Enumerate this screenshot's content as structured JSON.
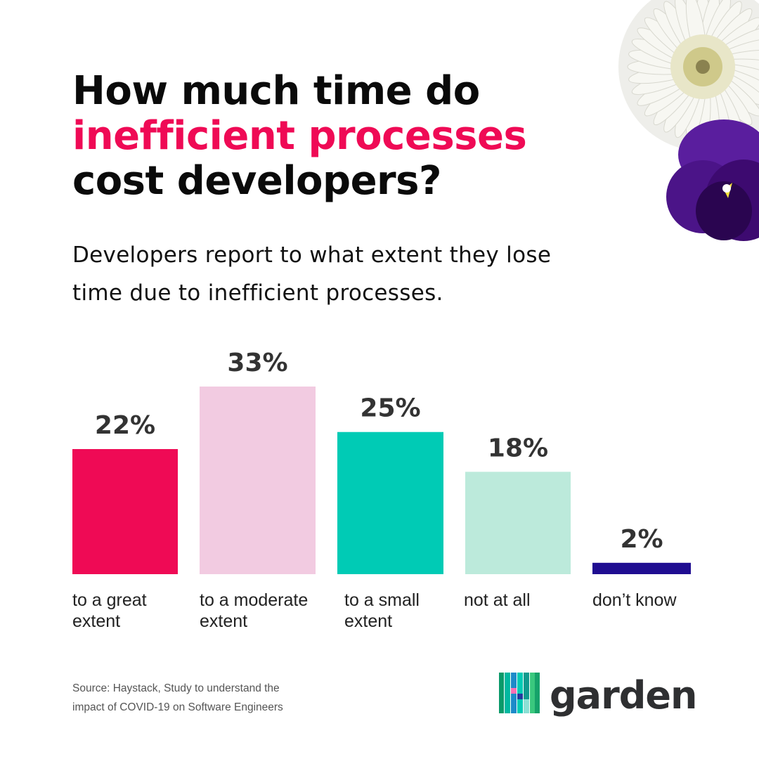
{
  "title": {
    "line1": "How much time do",
    "line2": "inefficient processes",
    "line3": "cost developers?"
  },
  "subtitle": {
    "line1": "Developers report to what extent they lose",
    "line2": "time due to inefficient processes."
  },
  "chart_data": {
    "type": "bar",
    "categories": [
      [
        "to a great",
        "extent"
      ],
      [
        "to a moderate",
        "extent"
      ],
      [
        "to a small",
        "extent"
      ],
      [
        "not at all"
      ],
      [
        "don’t know"
      ]
    ],
    "values": [
      22,
      33,
      25,
      18,
      2
    ],
    "data_labels": [
      "22%",
      "33%",
      "25%",
      "18%",
      "2%"
    ],
    "bar_colors": [
      "#ef0a55",
      "#f2cbe1",
      "#00cbb5",
      "#bceadb",
      "#1f0d91"
    ],
    "ylim": [
      0,
      33
    ],
    "grid": false,
    "title": "",
    "xlabel": "",
    "ylabel": ""
  },
  "source": {
    "line1": "Source: Haystack, Study to understand the",
    "line2": "impact of COVID-19 on Software Engineers"
  },
  "brand": {
    "name": "garden",
    "logo_icon": "garden-logo-icon"
  },
  "colors": {
    "title_text": "#0a0a0a",
    "title_accent": "#ef0a55",
    "bar_label": "#333333"
  },
  "decoration": {
    "icons": [
      "white-chrysanthemum-icon",
      "purple-pansy-icon"
    ]
  }
}
